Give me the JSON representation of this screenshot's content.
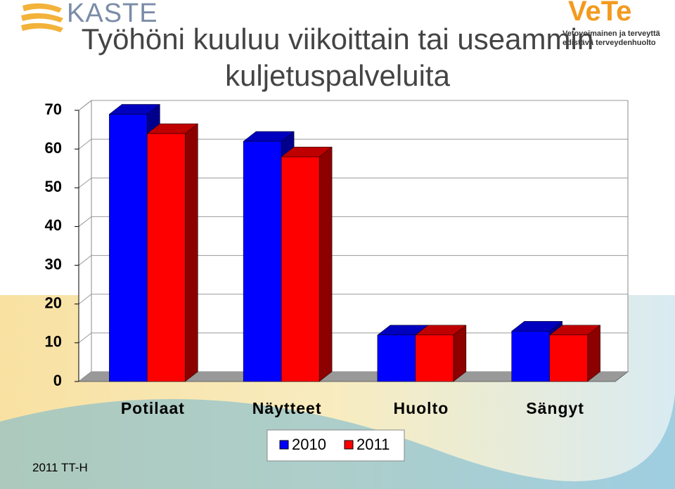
{
  "slide": {
    "logo_left": "KASTE",
    "logo_right": "VeTe",
    "tagline": [
      "Vetovoimainen ja terveyttä",
      "edistävä terveydenhuolto"
    ],
    "footer": "2011 TT-H"
  },
  "chart_data": {
    "type": "bar3d",
    "title": "Työhöni kuuluu viikoittain tai useammin kuljetuspalveluita",
    "categories": [
      "Potilaat",
      "Näytteet",
      "Huolto",
      "Sängyt"
    ],
    "series": [
      {
        "name": "2010",
        "color": "#0000ff",
        "values": [
          69,
          62,
          12,
          13
        ]
      },
      {
        "name": "2011",
        "color": "#ff0000",
        "values": [
          64,
          58,
          12,
          12
        ]
      }
    ],
    "ylim": [
      0,
      70
    ],
    "yticks": [
      0,
      10,
      20,
      30,
      40,
      50,
      60,
      70
    ],
    "grid": true
  }
}
